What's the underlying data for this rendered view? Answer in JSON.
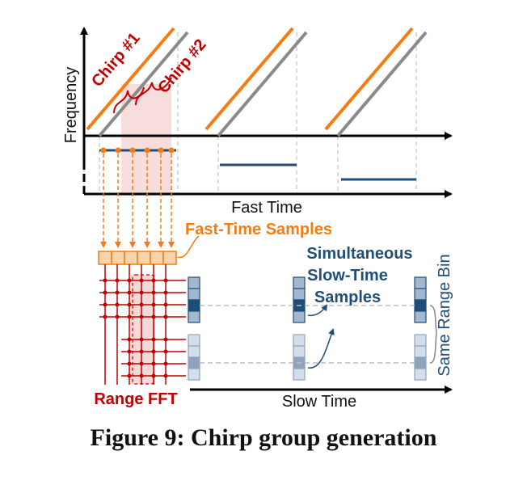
{
  "labels": {
    "frequency": "Frequency",
    "fast_time": "Fast Time",
    "slow_time": "Slow Time",
    "chirp1": "Chirp #1",
    "chirp2": "Chirp #2",
    "fast_time_samples": "Fast-Time Samples",
    "simultaneous": [
      "Simultaneous",
      "Slow-Time",
      "Samples"
    ],
    "same_range_bin": "Same Range Bin",
    "range_fft": "Range FFT"
  },
  "caption": "Figure 9: Chirp group generation",
  "colors": {
    "orange": "#F57C12",
    "gray": "#8A8A8A",
    "navy": "#1F4E79",
    "red": "#C00000",
    "pink": "#F4C7C7",
    "cell_dark": "#A3B8CF",
    "cell_light": "#D3DEEA"
  }
}
